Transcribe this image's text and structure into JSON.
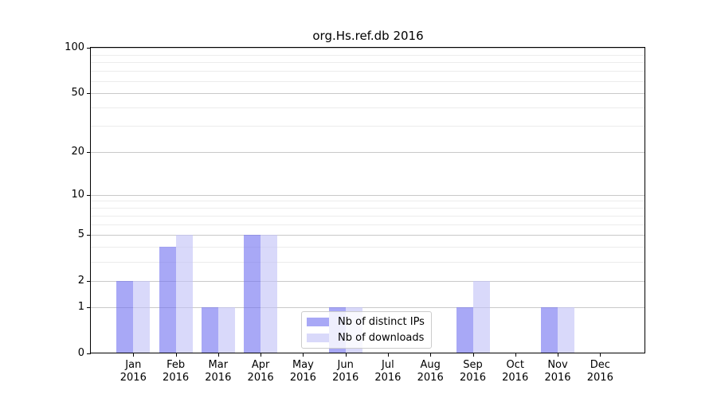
{
  "chart_data": {
    "type": "bar",
    "title": "org.Hs.ref.db 2016",
    "categories": [
      "Jan",
      "Feb",
      "Mar",
      "Apr",
      "May",
      "Jun",
      "Jul",
      "Aug",
      "Sep",
      "Oct",
      "Nov",
      "Dec"
    ],
    "x_tick_second_line": "2016",
    "series": [
      {
        "name": "Nb of distinct IPs",
        "color": "#a8a8f5",
        "fill": "rgba(115,115,240,0.62)",
        "values": [
          2,
          4,
          1,
          5,
          0,
          1,
          0,
          0,
          1,
          0,
          1,
          0
        ]
      },
      {
        "name": "Nb of downloads",
        "color": "#d9d9fa",
        "fill": "rgba(194,194,247,0.62)",
        "values": [
          2,
          5,
          1,
          5,
          0,
          1,
          0,
          0,
          2,
          0,
          1,
          0
        ]
      }
    ],
    "xlabel": "",
    "ylabel": "",
    "yscale": "log1p",
    "ylim": [
      0,
      100
    ],
    "yticks_major": [
      0,
      1,
      2,
      5,
      10,
      20,
      50,
      100
    ],
    "yticks_minor": [
      3,
      4,
      6,
      7,
      8,
      9,
      30,
      40,
      60,
      70,
      80,
      90
    ],
    "grid": "horizontal-on",
    "legend_position": "inside-bottom-center",
    "colors": {
      "grid_major": "#c9c9c9",
      "grid_minor": "#ececec",
      "axis": "#000000",
      "legend_border": "#cccccc",
      "background": "#ffffff"
    }
  }
}
